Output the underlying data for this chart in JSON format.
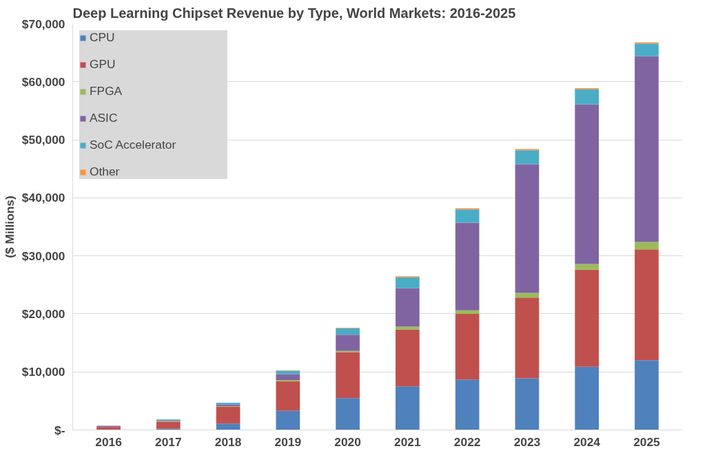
{
  "chart_data": {
    "type": "bar",
    "stacked": true,
    "title": "Deep Learning Chipset Revenue by Type, World Markets: 2016-2025",
    "ylabel": "($ Millions)",
    "categories": [
      "2016",
      "2017",
      "2018",
      "2019",
      "2020",
      "2021",
      "2022",
      "2023",
      "2024",
      "2025"
    ],
    "series": [
      {
        "name": "CPU",
        "color": "#4f81bd",
        "values": [
          null,
          200,
          1100,
          3300,
          5500,
          7500,
          8700,
          8900,
          10900,
          12000
        ]
      },
      {
        "name": "GPU",
        "color": "#c0504d",
        "values": [
          500,
          1200,
          2900,
          5100,
          7900,
          9800,
          11300,
          13900,
          16700,
          19100
        ]
      },
      {
        "name": "FPGA",
        "color": "#9bbb59",
        "values": [
          null,
          100,
          100,
          200,
          200,
          500,
          600,
          800,
          1000,
          1300
        ]
      },
      {
        "name": "ASIC",
        "color": "#8064a2",
        "values": [
          200,
          200,
          300,
          1000,
          2800,
          6600,
          15100,
          22200,
          27500,
          32000
        ]
      },
      {
        "name": "SoC Accelerator",
        "color": "#4bacc6",
        "values": [
          null,
          100,
          300,
          600,
          1100,
          1900,
          2300,
          2400,
          2600,
          2200
        ]
      },
      {
        "name": "Other",
        "color": "#f79646",
        "values": [
          null,
          null,
          null,
          100,
          100,
          200,
          200,
          200,
          200,
          200
        ]
      }
    ],
    "ylim": [
      0,
      70000
    ],
    "yticks": [
      {
        "value": 0,
        "label": "$-"
      },
      {
        "value": 10000,
        "label": "$10,000"
      },
      {
        "value": 20000,
        "label": "$20,000"
      },
      {
        "value": 30000,
        "label": "$30,000"
      },
      {
        "value": 40000,
        "label": "$40,000"
      },
      {
        "value": 50000,
        "label": "$50,000"
      },
      {
        "value": 60000,
        "label": "$60,000"
      },
      {
        "value": 70000,
        "label": "$70,000"
      }
    ],
    "grid": "y",
    "legend": "top left"
  }
}
